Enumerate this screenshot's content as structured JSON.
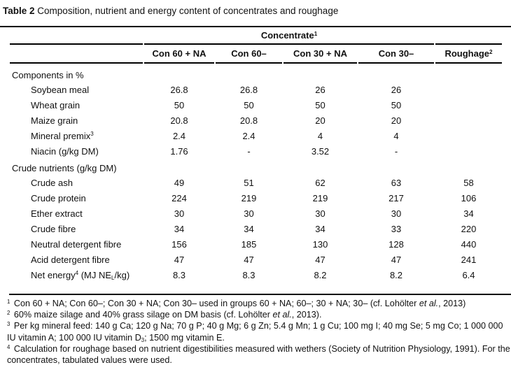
{
  "colors": {
    "background": "#ffffff",
    "text": "#111111",
    "rule": "#000000"
  },
  "title": {
    "label": "Table 2",
    "text": "Composition, nutrient and energy content of concentrates and roughage"
  },
  "table": {
    "group_header": "Concentrate",
    "group_header_sup": "1",
    "columns": [
      "Con 60 + NA",
      "Con 60–",
      "Con 30 + NA",
      "Con 30–"
    ],
    "roughage_header": "Roughage",
    "roughage_sup": "2",
    "sections": [
      {
        "label": "Components in %",
        "rows": [
          {
            "label_parts": [
              {
                "t": "Soybean meal"
              }
            ],
            "values": [
              "26.8",
              "26.8",
              "26",
              "26",
              ""
            ]
          },
          {
            "label_parts": [
              {
                "t": "Wheat grain"
              }
            ],
            "values": [
              "50",
              "50",
              "50",
              "50",
              ""
            ]
          },
          {
            "label_parts": [
              {
                "t": "Maize grain"
              }
            ],
            "values": [
              "20.8",
              "20.8",
              "20",
              "20",
              ""
            ]
          },
          {
            "label_parts": [
              {
                "t": "Mineral premix"
              },
              {
                "sup": "3"
              }
            ],
            "values": [
              "2.4",
              "2.4",
              "4",
              "4",
              ""
            ]
          },
          {
            "label_parts": [
              {
                "t": "Niacin (g/kg DM)"
              }
            ],
            "values": [
              "1.76",
              "-",
              "3.52",
              "-",
              ""
            ]
          }
        ]
      },
      {
        "label": "Crude nutrients (g/kg DM)",
        "rows": [
          {
            "label_parts": [
              {
                "t": "Crude ash"
              }
            ],
            "values": [
              "49",
              "51",
              "62",
              "63",
              "58"
            ]
          },
          {
            "label_parts": [
              {
                "t": "Crude protein"
              }
            ],
            "values": [
              "224",
              "219",
              "219",
              "217",
              "106"
            ]
          },
          {
            "label_parts": [
              {
                "t": "Ether extract"
              }
            ],
            "values": [
              "30",
              "30",
              "30",
              "30",
              "34"
            ]
          },
          {
            "label_parts": [
              {
                "t": "Crude fibre"
              }
            ],
            "values": [
              "34",
              "34",
              "34",
              "33",
              "220"
            ]
          },
          {
            "label_parts": [
              {
                "t": "Neutral detergent fibre"
              }
            ],
            "values": [
              "156",
              "185",
              "130",
              "128",
              "440"
            ]
          },
          {
            "label_parts": [
              {
                "t": "Acid detergent fibre"
              }
            ],
            "values": [
              "47",
              "47",
              "47",
              "47",
              "241"
            ]
          },
          {
            "label_parts": [
              {
                "t": "Net energy"
              },
              {
                "sup": "4"
              },
              {
                "t": " (MJ NE"
              },
              {
                "sub": "L"
              },
              {
                "t": "/kg)"
              }
            ],
            "values": [
              "8.3",
              "8.3",
              "8.2",
              "8.2",
              "6.4"
            ]
          }
        ]
      }
    ]
  },
  "footnotes": [
    {
      "parts": [
        {
          "sup": "1"
        },
        {
          "t": " Con 60 + NA; Con 60–; Con 30 + NA; Con 30– used in groups 60 + NA; 60–; 30 + NA; 30– (cf. Lohölter "
        },
        {
          "i": "et al."
        },
        {
          "t": ", 2013)"
        }
      ]
    },
    {
      "parts": [
        {
          "sup": "2"
        },
        {
          "t": " 60% maize silage and 40% grass silage on DM basis (cf. Lohölter "
        },
        {
          "i": "et al."
        },
        {
          "t": ", 2013)."
        }
      ]
    },
    {
      "parts": [
        {
          "sup": "3"
        },
        {
          "t": " Per kg mineral feed: 140 g Ca; 120 g Na; 70 g P; 40 g Mg; 6 g Zn; 5.4 g Mn; 1 g Cu; 100 mg I; 40 mg Se; 5 mg Co; 1 000 000 IU vitamin A; 100 000 IU vitamin D"
        },
        {
          "sub": "3"
        },
        {
          "t": "; 1500 mg vitamin E."
        }
      ]
    },
    {
      "parts": [
        {
          "sup": "4"
        },
        {
          "t": " Calculation for roughage based on nutrient digestibilities measured with wethers (Society of Nutrition Physiology, 1991). For the concentrates, tabulated values were used."
        }
      ]
    }
  ]
}
